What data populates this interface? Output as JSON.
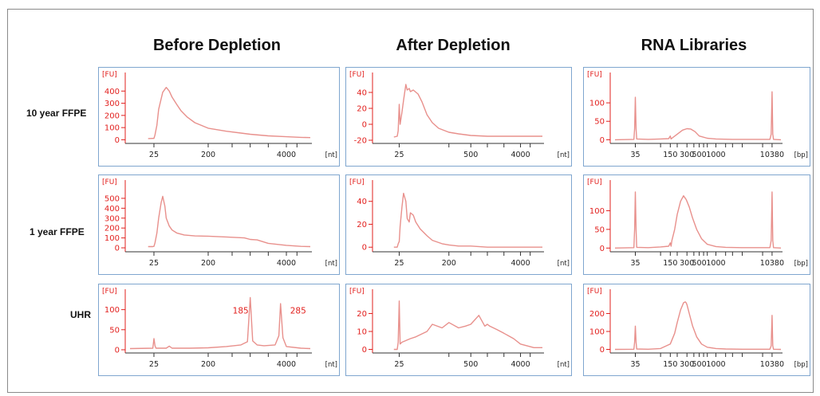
{
  "columns": [
    "Before Depletion",
    "After Depletion",
    "RNA Libraries"
  ],
  "rows": [
    "10 year FFPE",
    "1 year FFPE",
    "UHR"
  ],
  "colors": {
    "trace": "#e8908c",
    "axis_text": "#e2201e",
    "panel_border": "#7fa6cf"
  },
  "chart_data": [
    {
      "id": "before-10y",
      "type": "line",
      "ylabel": "[FU]",
      "x_unit": "[nt]",
      "yticks": [
        0,
        100,
        200,
        300,
        400
      ],
      "ylim": [
        -30,
        500
      ],
      "x_positions": [
        25,
        200,
        4000
      ],
      "x_labels": [
        "25",
        "200",
        "4000"
      ],
      "x": [
        20,
        24,
        25,
        26,
        28,
        30,
        35,
        40,
        45,
        50,
        60,
        70,
        90,
        120,
        200,
        400,
        700,
        1000,
        2000,
        4000,
        7000,
        10000
      ],
      "y": [
        10,
        11,
        11,
        40,
        120,
        250,
        390,
        430,
        400,
        350,
        290,
        240,
        185,
        140,
        95,
        70,
        55,
        45,
        32,
        25,
        20,
        18
      ]
    },
    {
      "id": "after-10y",
      "type": "line",
      "ylabel": "[FU]",
      "x_unit": "[nt]",
      "yticks": [
        -20,
        0,
        20,
        40
      ],
      "ylim": [
        -24,
        57
      ],
      "x_positions": [
        25,
        500,
        4000
      ],
      "x_labels": [
        "25",
        "500",
        "4000"
      ],
      "x": [
        20,
        23,
        24,
        25,
        26,
        28,
        30,
        33,
        35,
        38,
        40,
        45,
        55,
        65,
        80,
        100,
        130,
        200,
        300,
        500,
        1000,
        4000,
        10000
      ],
      "y": [
        -16,
        -15,
        -8,
        25,
        0,
        15,
        30,
        50,
        43,
        45,
        41,
        43,
        38,
        28,
        12,
        2,
        -5,
        -10,
        -12,
        -14,
        -15,
        -15,
        -15
      ]
    },
    {
      "id": "libraries-10y",
      "type": "line",
      "ylabel": "[FU]",
      "x_unit": "[bp]",
      "yticks": [
        0,
        50,
        100
      ],
      "ylim": [
        -10,
        165
      ],
      "x_positions": [
        35,
        150,
        300,
        500,
        1000,
        10380
      ],
      "x_labels": [
        "35",
        "150",
        "300",
        "500",
        "1000",
        "10380"
      ],
      "x": [
        15,
        33,
        34,
        35,
        36,
        37,
        60,
        100,
        140,
        150,
        155,
        160,
        200,
        250,
        300,
        350,
        420,
        500,
        700,
        1000,
        2000,
        5000,
        9500,
        10000,
        10380,
        10700,
        11000,
        15000
      ],
      "y": [
        0,
        1,
        30,
        115,
        30,
        2,
        1,
        2,
        3,
        10,
        2,
        4,
        15,
        26,
        30,
        29,
        22,
        10,
        4,
        2,
        1,
        1,
        1,
        15,
        130,
        15,
        1,
        0
      ]
    },
    {
      "id": "before-1y",
      "type": "line",
      "ylabel": "[FU]",
      "x_unit": "[nt]",
      "yticks": [
        0,
        100,
        200,
        300,
        400,
        500
      ],
      "ylim": [
        -40,
        620
      ],
      "x_positions": [
        25,
        200,
        4000
      ],
      "x_labels": [
        "25",
        "200",
        "4000"
      ],
      "x": [
        20,
        24,
        25,
        26,
        28,
        30,
        33,
        35,
        38,
        40,
        45,
        50,
        60,
        80,
        120,
        200,
        400,
        800,
        1000,
        1300,
        2000,
        4000,
        7000,
        10000
      ],
      "y": [
        12,
        12,
        15,
        50,
        150,
        300,
        460,
        520,
        420,
        300,
        220,
        180,
        150,
        130,
        120,
        118,
        110,
        100,
        85,
        80,
        45,
        25,
        15,
        12
      ]
    },
    {
      "id": "after-1y",
      "type": "line",
      "ylabel": "[FU]",
      "x_unit": "[nt]",
      "yticks": [
        0,
        20,
        40
      ],
      "ylim": [
        -4,
        53
      ],
      "x_positions": [
        25,
        200,
        4000
      ],
      "x_labels": [
        "25",
        "200",
        "4000"
      ],
      "x": [
        20,
        23,
        24,
        25,
        26,
        28,
        30,
        33,
        35,
        38,
        40,
        45,
        50,
        60,
        80,
        100,
        150,
        200,
        300,
        500,
        1000,
        4000,
        10000
      ],
      "y": [
        0,
        0,
        3,
        5,
        18,
        35,
        47,
        40,
        25,
        22,
        30,
        28,
        22,
        16,
        10,
        6,
        3,
        2,
        1,
        1,
        0,
        0,
        0
      ]
    },
    {
      "id": "libraries-1y",
      "type": "line",
      "ylabel": "[FU]",
      "x_unit": "[bp]",
      "yticks": [
        0,
        50,
        100
      ],
      "ylim": [
        -10,
        165
      ],
      "x_positions": [
        35,
        150,
        300,
        500,
        1000,
        10380
      ],
      "x_labels": [
        "35",
        "150",
        "300",
        "500",
        "1000",
        "10380"
      ],
      "x": [
        15,
        33,
        34,
        35,
        36,
        37,
        60,
        100,
        140,
        150,
        155,
        160,
        180,
        200,
        230,
        260,
        290,
        300,
        330,
        380,
        450,
        550,
        700,
        1000,
        1500,
        3000,
        9500,
        10000,
        10380,
        10700,
        11000,
        15000
      ],
      "y": [
        0,
        1,
        50,
        150,
        50,
        2,
        1,
        3,
        5,
        14,
        5,
        20,
        50,
        90,
        125,
        140,
        130,
        125,
        110,
        80,
        50,
        25,
        10,
        4,
        2,
        1,
        1,
        20,
        150,
        20,
        1,
        0
      ]
    },
    {
      "id": "before-uhr",
      "type": "line",
      "ylabel": "[FU]",
      "x_unit": "[nt]",
      "yticks": [
        0,
        50,
        100
      ],
      "ylim": [
        -8,
        135
      ],
      "x_positions": [
        25,
        200,
        4000
      ],
      "x_labels": [
        "25",
        "200",
        "4000"
      ],
      "x": [
        10,
        24,
        25,
        26,
        27,
        40,
        45,
        50,
        60,
        100,
        200,
        400,
        700,
        900,
        1000,
        1100,
        1300,
        1700,
        2600,
        3000,
        3200,
        3500,
        4000,
        7000,
        10000
      ],
      "y": [
        3,
        4,
        28,
        10,
        4,
        4,
        9,
        4,
        4,
        4,
        5,
        8,
        12,
        20,
        130,
        22,
        12,
        10,
        12,
        35,
        115,
        30,
        8,
        4,
        3
      ],
      "annotations": [
        {
          "x": 1000,
          "label": "185"
        },
        {
          "x": 3200,
          "label": "285"
        }
      ]
    },
    {
      "id": "after-uhr",
      "type": "line",
      "ylabel": "[FU]",
      "x_unit": "[nt]",
      "yticks": [
        0,
        10,
        20
      ],
      "ylim": [
        -2,
        30
      ],
      "x_positions": [
        25,
        500,
        4000
      ],
      "x_labels": [
        "25",
        "500",
        "4000"
      ],
      "x": [
        20,
        23,
        24,
        25,
        26,
        28,
        40,
        50,
        80,
        100,
        150,
        200,
        300,
        400,
        500,
        700,
        900,
        1000,
        1100,
        1500,
        2000,
        3000,
        4000,
        7000,
        10000
      ],
      "y": [
        0,
        0,
        4,
        27,
        3,
        4,
        6,
        7,
        10,
        14,
        12,
        15,
        12,
        13,
        14,
        19,
        13,
        14,
        13,
        11,
        9,
        6,
        3,
        1,
        1
      ]
    },
    {
      "id": "libraries-uhr",
      "type": "line",
      "ylabel": "[FU]",
      "x_unit": "[bp]",
      "yticks": [
        0,
        100,
        200
      ],
      "ylim": [
        -20,
        300
      ],
      "x_positions": [
        35,
        150,
        300,
        500,
        1000,
        10380
      ],
      "x_labels": [
        "35",
        "150",
        "300",
        "500",
        "1000",
        "10380"
      ],
      "x": [
        15,
        33,
        34,
        35,
        36,
        37,
        60,
        100,
        150,
        180,
        200,
        230,
        260,
        280,
        290,
        300,
        330,
        380,
        450,
        550,
        700,
        1000,
        1500,
        3000,
        9500,
        10000,
        10380,
        10700,
        11000,
        15000
      ],
      "y": [
        0,
        1,
        40,
        130,
        40,
        2,
        1,
        5,
        30,
        90,
        150,
        220,
        260,
        265,
        260,
        250,
        200,
        130,
        70,
        30,
        12,
        5,
        2,
        1,
        1,
        20,
        190,
        20,
        1,
        0
      ]
    }
  ]
}
